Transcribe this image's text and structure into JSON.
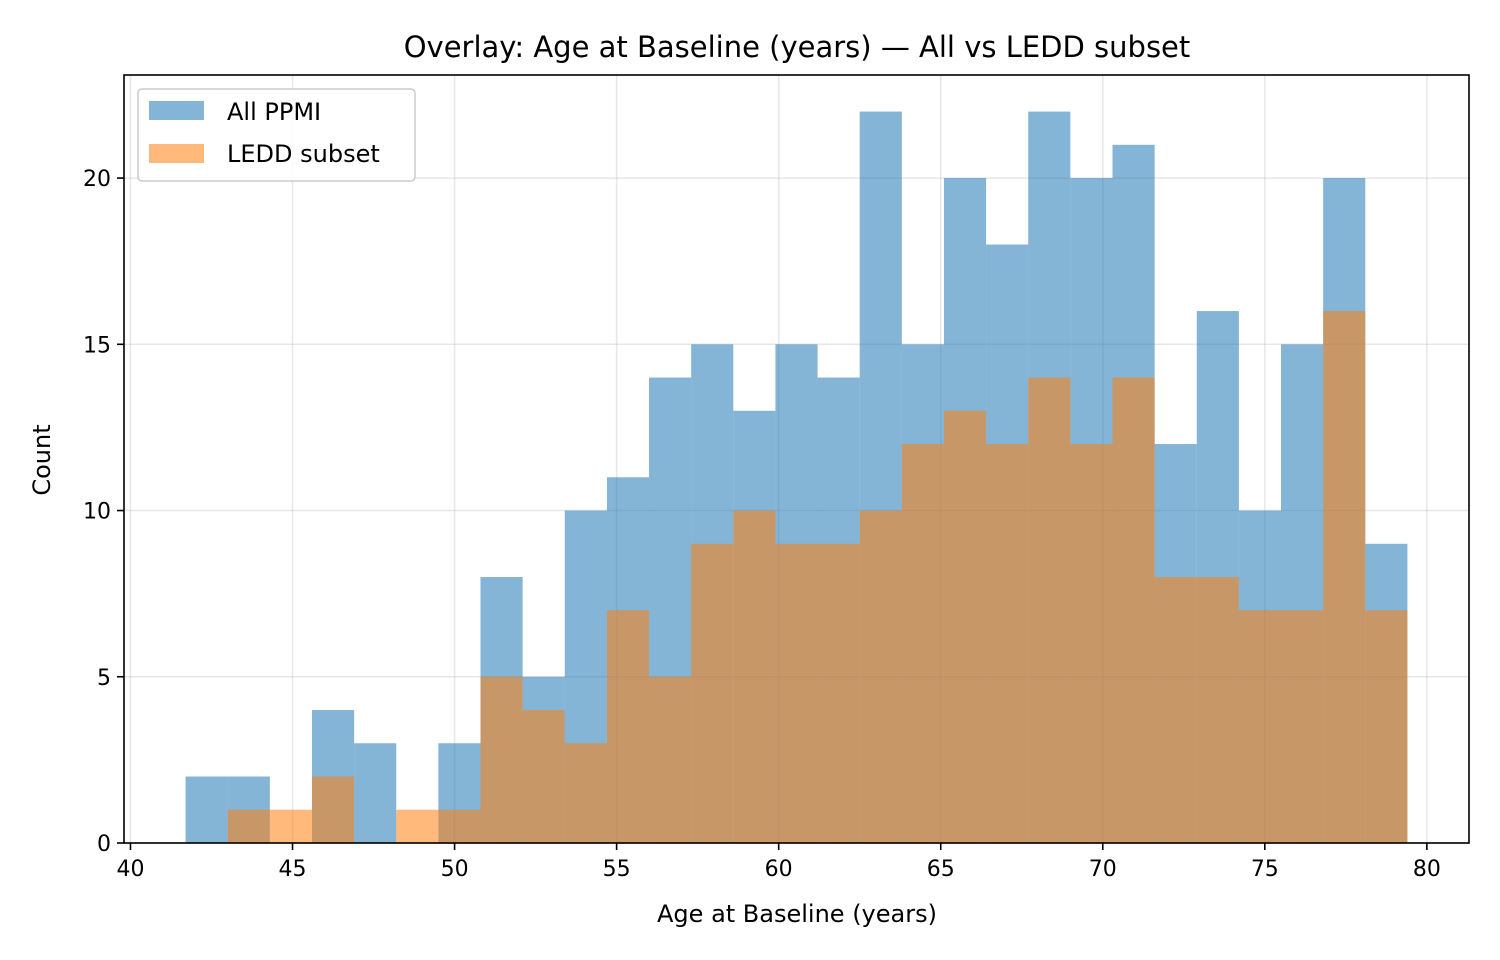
{
  "chart_data": {
    "type": "bar",
    "subtype": "overlaid-histogram",
    "title": "Overlay: Age at Baseline (years) — All vs LEDD subset",
    "xlabel": "Age at Baseline (years)",
    "ylabel": "Count",
    "xlim": [
      39.8,
      81.3
    ],
    "ylim": [
      0,
      23.1
    ],
    "xticks": [
      40,
      45,
      50,
      55,
      60,
      65,
      70,
      75,
      80
    ],
    "yticks": [
      0,
      5,
      10,
      15,
      20
    ],
    "grid": true,
    "legend_position": "top-left",
    "bin_width": 1.3,
    "series": [
      {
        "name": "All PPMI",
        "color": "#1f77b4",
        "opacity": 0.55,
        "bin_start": 41.7,
        "values": [
          2,
          2,
          0,
          4,
          3,
          0,
          3,
          8,
          5,
          10,
          11,
          14,
          15,
          13,
          15,
          14,
          22,
          15,
          20,
          18,
          22,
          20,
          21,
          12,
          16,
          10,
          15,
          20,
          9
        ]
      },
      {
        "name": "LEDD subset",
        "color": "#ff7f0e",
        "opacity": 0.55,
        "bin_start": 43.0,
        "values": [
          1,
          1,
          2,
          0,
          1,
          1,
          5,
          4,
          3,
          7,
          5,
          9,
          10,
          9,
          9,
          10,
          12,
          13,
          12,
          14,
          12,
          14,
          8,
          8,
          7,
          7,
          16,
          7
        ]
      }
    ]
  }
}
